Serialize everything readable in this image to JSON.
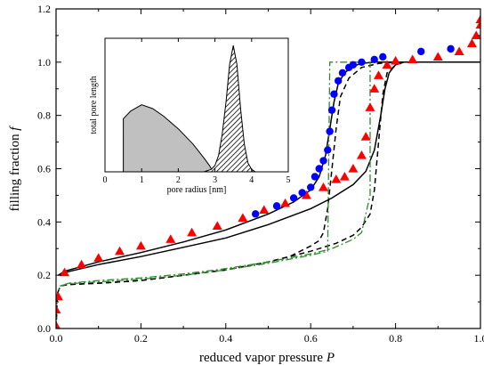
{
  "chart_data": [
    {
      "type": "scatter",
      "title": "",
      "xlabel": "reduced vapor pressure",
      "xlabel_symbol": "P",
      "ylabel": "filling fraction",
      "ylabel_symbol": "f",
      "xlim": [
        0,
        1
      ],
      "ylim": [
        0,
        1.2
      ],
      "x_ticks": [
        "0.0",
        "0.2",
        "0.4",
        "0.6",
        "0.8",
        "1.0"
      ],
      "y_ticks": [
        "0.0",
        "0.2",
        "0.4",
        "0.6",
        "0.8",
        "1.0",
        "1.2"
      ],
      "grid": false,
      "legend": "none",
      "series": [
        {
          "kind": "scatter",
          "marker": "triangle",
          "color": "#ff0000",
          "points": [
            [
              0.0,
              0.01
            ],
            [
              0.0,
              0.07
            ],
            [
              0.005,
              0.12
            ],
            [
              0.02,
              0.21
            ],
            [
              0.06,
              0.24
            ],
            [
              0.1,
              0.265
            ],
            [
              0.15,
              0.29
            ],
            [
              0.2,
              0.31
            ],
            [
              0.27,
              0.335
            ],
            [
              0.32,
              0.36
            ],
            [
              0.38,
              0.385
            ],
            [
              0.44,
              0.415
            ],
            [
              0.49,
              0.445
            ],
            [
              0.54,
              0.47
            ],
            [
              0.59,
              0.5
            ],
            [
              0.63,
              0.53
            ],
            [
              0.66,
              0.56
            ],
            [
              0.68,
              0.57
            ],
            [
              0.7,
              0.6
            ],
            [
              0.72,
              0.65
            ],
            [
              0.73,
              0.72
            ],
            [
              0.74,
              0.83
            ],
            [
              0.75,
              0.9
            ],
            [
              0.76,
              0.95
            ],
            [
              0.78,
              0.99
            ],
            [
              0.8,
              1.005
            ],
            [
              0.84,
              1.01
            ],
            [
              0.9,
              1.02
            ],
            [
              0.95,
              1.04
            ],
            [
              0.98,
              1.07
            ],
            [
              0.99,
              1.1
            ],
            [
              1.0,
              1.14
            ],
            [
              1.0,
              1.16
            ]
          ]
        },
        {
          "kind": "scatter",
          "marker": "circle",
          "color": "#0000ff",
          "points": [
            [
              0.47,
              0.43
            ],
            [
              0.52,
              0.46
            ],
            [
              0.56,
              0.49
            ],
            [
              0.58,
              0.51
            ],
            [
              0.6,
              0.53
            ],
            [
              0.61,
              0.57
            ],
            [
              0.62,
              0.6
            ],
            [
              0.63,
              0.63
            ],
            [
              0.64,
              0.67
            ],
            [
              0.645,
              0.74
            ],
            [
              0.65,
              0.82
            ],
            [
              0.655,
              0.88
            ],
            [
              0.665,
              0.93
            ],
            [
              0.675,
              0.96
            ],
            [
              0.69,
              0.98
            ],
            [
              0.7,
              0.99
            ],
            [
              0.72,
              1.0
            ],
            [
              0.75,
              1.01
            ],
            [
              0.77,
              1.02
            ],
            [
              0.86,
              1.04
            ],
            [
              0.93,
              1.05
            ]
          ]
        },
        {
          "kind": "line",
          "style": "solid",
          "color": "#000000",
          "points": [
            [
              0.005,
              0.2
            ],
            [
              0.02,
              0.215
            ],
            [
              0.1,
              0.25
            ],
            [
              0.2,
              0.285
            ],
            [
              0.3,
              0.325
            ],
            [
              0.4,
              0.37
            ],
            [
              0.5,
              0.43
            ],
            [
              0.56,
              0.475
            ],
            [
              0.6,
              0.52
            ],
            [
              0.62,
              0.57
            ],
            [
              0.635,
              0.65
            ],
            [
              0.645,
              0.75
            ],
            [
              0.655,
              0.85
            ],
            [
              0.665,
              0.92
            ],
            [
              0.68,
              0.96
            ],
            [
              0.7,
              0.985
            ],
            [
              0.72,
              0.995
            ],
            [
              0.75,
              1.0
            ],
            [
              1.0,
              1.0
            ]
          ]
        },
        {
          "kind": "line",
          "style": "solid",
          "color": "#000000",
          "points": [
            [
              0.005,
              0.2
            ],
            [
              0.02,
              0.21
            ],
            [
              0.1,
              0.24
            ],
            [
              0.2,
              0.27
            ],
            [
              0.3,
              0.305
            ],
            [
              0.4,
              0.34
            ],
            [
              0.5,
              0.39
            ],
            [
              0.6,
              0.45
            ],
            [
              0.65,
              0.49
            ],
            [
              0.7,
              0.54
            ],
            [
              0.73,
              0.59
            ],
            [
              0.75,
              0.67
            ],
            [
              0.765,
              0.8
            ],
            [
              0.775,
              0.9
            ],
            [
              0.785,
              0.96
            ],
            [
              0.8,
              0.99
            ],
            [
              0.82,
              1.0
            ],
            [
              1.0,
              1.0
            ]
          ]
        },
        {
          "kind": "line",
          "style": "dashed",
          "color": "#000000",
          "points": [
            [
              0.0,
              0.0
            ],
            [
              0.003,
              0.13
            ],
            [
              0.01,
              0.16
            ],
            [
              0.03,
              0.165
            ],
            [
              0.1,
              0.17
            ],
            [
              0.2,
              0.18
            ],
            [
              0.3,
              0.2
            ],
            [
              0.4,
              0.22
            ],
            [
              0.5,
              0.25
            ],
            [
              0.55,
              0.27
            ],
            [
              0.6,
              0.31
            ],
            [
              0.62,
              0.33
            ],
            [
              0.63,
              0.36
            ],
            [
              0.64,
              0.45
            ],
            [
              0.65,
              0.6
            ],
            [
              0.66,
              0.75
            ],
            [
              0.67,
              0.87
            ],
            [
              0.69,
              0.94
            ],
            [
              0.72,
              0.98
            ],
            [
              0.76,
              0.995
            ],
            [
              0.8,
              1.0
            ],
            [
              1.0,
              1.0
            ]
          ]
        },
        {
          "kind": "line",
          "style": "dashed",
          "color": "#000000",
          "points": [
            [
              0.0,
              0.0
            ],
            [
              0.003,
              0.13
            ],
            [
              0.01,
              0.16
            ],
            [
              0.03,
              0.165
            ],
            [
              0.1,
              0.17
            ],
            [
              0.2,
              0.18
            ],
            [
              0.3,
              0.2
            ],
            [
              0.4,
              0.22
            ],
            [
              0.5,
              0.25
            ],
            [
              0.6,
              0.29
            ],
            [
              0.66,
              0.32
            ],
            [
              0.7,
              0.35
            ],
            [
              0.72,
              0.38
            ],
            [
              0.74,
              0.43
            ],
            [
              0.75,
              0.52
            ],
            [
              0.76,
              0.7
            ],
            [
              0.77,
              0.88
            ],
            [
              0.78,
              0.96
            ],
            [
              0.8,
              0.99
            ],
            [
              0.82,
              1.0
            ],
            [
              1.0,
              1.0
            ]
          ]
        },
        {
          "kind": "line",
          "style": "dash-dot",
          "color": "#2e8b2e",
          "points": [
            [
              0.0,
              0.0
            ],
            [
              0.003,
              0.13
            ],
            [
              0.01,
              0.16
            ],
            [
              0.03,
              0.168
            ],
            [
              0.1,
              0.175
            ],
            [
              0.2,
              0.185
            ],
            [
              0.3,
              0.2
            ],
            [
              0.4,
              0.22
            ],
            [
              0.5,
              0.245
            ],
            [
              0.6,
              0.275
            ],
            [
              0.64,
              0.29
            ],
            [
              0.645,
              1.0
            ],
            [
              0.74,
              1.0
            ],
            [
              0.74,
              0.5
            ],
            [
              0.72,
              0.36
            ],
            [
              0.7,
              0.335
            ],
            [
              0.65,
              0.3
            ],
            [
              0.6,
              0.28
            ],
            [
              0.5,
              0.25
            ],
            [
              0.4,
              0.225
            ],
            [
              0.3,
              0.205
            ],
            [
              0.2,
              0.19
            ],
            [
              0.1,
              0.18
            ],
            [
              0.03,
              0.17
            ],
            [
              0.01,
              0.16
            ]
          ]
        }
      ]
    },
    {
      "type": "area",
      "title": "",
      "xlabel": "pore radius [nm]",
      "ylabel": "total pore length",
      "xlim": [
        0,
        5
      ],
      "x_ticks": [
        "0",
        "1",
        "2",
        "3",
        "4",
        "5"
      ],
      "y_ticks_shown": false,
      "grid": false,
      "legend": "none",
      "series": [
        {
          "fill": "gray",
          "color": "#c0c0c0",
          "points": [
            [
              0.5,
              0
            ],
            [
              0.5,
              0.42
            ],
            [
              0.7,
              0.48
            ],
            [
              1.0,
              0.53
            ],
            [
              1.3,
              0.5
            ],
            [
              1.6,
              0.44
            ],
            [
              2.0,
              0.34
            ],
            [
              2.4,
              0.22
            ],
            [
              2.7,
              0.11
            ],
            [
              2.85,
              0.05
            ],
            [
              2.95,
              0.0
            ]
          ]
        },
        {
          "fill": "hatched",
          "color": "#000000",
          "points": [
            [
              2.7,
              0.0
            ],
            [
              2.9,
              0.02
            ],
            [
              3.0,
              0.05
            ],
            [
              3.1,
              0.13
            ],
            [
              3.2,
              0.3
            ],
            [
              3.3,
              0.55
            ],
            [
              3.4,
              0.85
            ],
            [
              3.5,
              1.0
            ],
            [
              3.6,
              0.85
            ],
            [
              3.7,
              0.5
            ],
            [
              3.8,
              0.22
            ],
            [
              3.9,
              0.07
            ],
            [
              4.0,
              0.02
            ],
            [
              4.1,
              0.0
            ]
          ]
        }
      ]
    }
  ]
}
